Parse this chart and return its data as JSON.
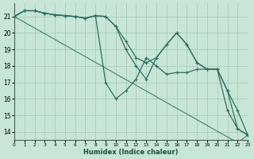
{
  "xlabel": "Humidex (Indice chaleur)",
  "xlim": [
    0,
    23
  ],
  "ylim": [
    13.5,
    21.8
  ],
  "yticks": [
    14,
    15,
    16,
    17,
    18,
    19,
    20,
    21
  ],
  "xticks": [
    0,
    1,
    2,
    3,
    4,
    5,
    6,
    7,
    8,
    9,
    10,
    11,
    12,
    13,
    14,
    15,
    16,
    17,
    18,
    19,
    20,
    21,
    22,
    23
  ],
  "bg_color": "#c8e6d8",
  "grid_color": "#a0c8b8",
  "line_color": "#2a7060",
  "line1_x": [
    0,
    1,
    2,
    3,
    4,
    5,
    6,
    7,
    8,
    9,
    10,
    11,
    12,
    13,
    14,
    15,
    16,
    17,
    18,
    19,
    20,
    21,
    22,
    23
  ],
  "line1_y": [
    21,
    21.35,
    21.35,
    21.2,
    21.1,
    21.05,
    21.0,
    20.9,
    21.05,
    17.0,
    16.0,
    16.5,
    17.2,
    18.5,
    18.0,
    17.5,
    17.6,
    17.6,
    17.8,
    17.8,
    17.8,
    15.3,
    14.2,
    13.8
  ],
  "line2_x": [
    0,
    1,
    2,
    3,
    4,
    5,
    6,
    7,
    8,
    9,
    10,
    11,
    12,
    13,
    14,
    15,
    16,
    17,
    18,
    19,
    20,
    21,
    22,
    23
  ],
  "line2_y": [
    21,
    21.35,
    21.35,
    21.2,
    21.1,
    21.05,
    21.0,
    20.9,
    21.05,
    21.0,
    20.4,
    19.5,
    18.5,
    18.2,
    18.5,
    19.3,
    20.0,
    19.3,
    18.2,
    17.8,
    17.8,
    16.5,
    15.3,
    13.8
  ],
  "line3_x": [
    0,
    1,
    2,
    3,
    4,
    5,
    6,
    7,
    8,
    9,
    10,
    11,
    12,
    13,
    14,
    15,
    16,
    17,
    18,
    19,
    20,
    21,
    22,
    23
  ],
  "line3_y": [
    21,
    21.35,
    21.35,
    21.2,
    21.1,
    21.05,
    21.0,
    20.9,
    21.05,
    21.0,
    20.4,
    19.0,
    18.0,
    17.2,
    18.5,
    19.3,
    20.0,
    19.3,
    18.2,
    17.8,
    17.8,
    16.5,
    14.2,
    13.8
  ],
  "line4_x": [
    0,
    1,
    2,
    3,
    4,
    5,
    6,
    7,
    8,
    9,
    10,
    11,
    12,
    13,
    14,
    15,
    16,
    17,
    18,
    19,
    20,
    21,
    22,
    23
  ],
  "line4_y": [
    21,
    20.65,
    20.3,
    19.96,
    19.61,
    19.26,
    18.91,
    18.57,
    18.22,
    17.87,
    17.52,
    17.17,
    16.83,
    16.48,
    16.13,
    15.78,
    15.43,
    15.09,
    14.74,
    14.39,
    14.04,
    13.7,
    13.35,
    13.8
  ]
}
